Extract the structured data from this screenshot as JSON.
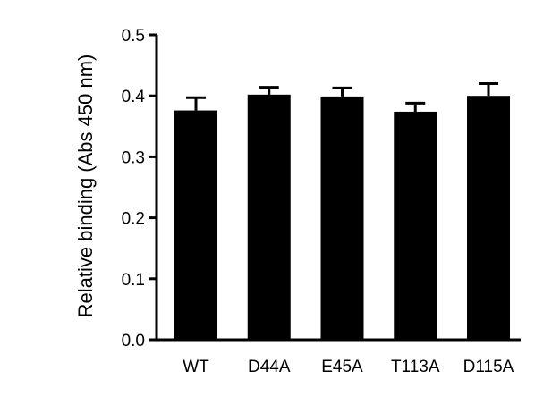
{
  "chart_data": {
    "type": "bar",
    "title": "",
    "xlabel": "",
    "ylabel": "Relative binding (Abs 450 nm)",
    "categories": [
      "WT",
      "D44A",
      "E45A",
      "T113A",
      "D115A"
    ],
    "values": [
      0.376,
      0.402,
      0.399,
      0.374,
      0.4
    ],
    "errors": [
      0.021,
      0.012,
      0.014,
      0.014,
      0.02
    ],
    "ylim": [
      0,
      0.5
    ],
    "yticks": [
      0.0,
      0.1,
      0.2,
      0.3,
      0.4,
      0.5
    ],
    "ytick_labels": [
      "0.0",
      "0.1",
      "0.2",
      "0.3",
      "0.4",
      "0.5"
    ],
    "grid": false,
    "legend": "none",
    "bar_color": "#000000"
  }
}
